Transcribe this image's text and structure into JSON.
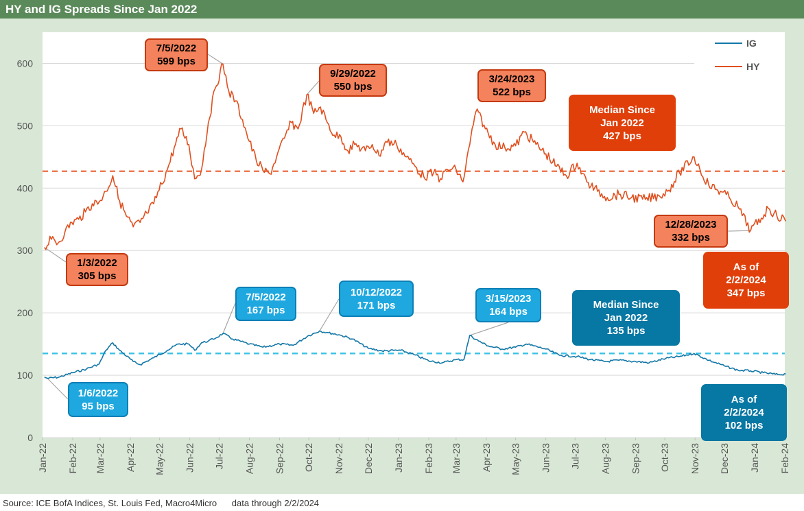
{
  "title": "HY and IG Spreads Since Jan 2022",
  "source": "Source: ICE BofA Indices, St. Louis Fed, Macro4Micro      data through 2/2/2024",
  "colors": {
    "hy": "#e0501f",
    "ig": "#1377a7",
    "hy_median": "#ee7a52",
    "ig_median": "#3cc3e6"
  },
  "callouts": {
    "hy_start": {
      "date": "1/3/2022",
      "value": "305 bps"
    },
    "hy_peak1": {
      "date": "7/5/2022",
      "value": "599 bps"
    },
    "hy_peak2": {
      "date": "9/29/2022",
      "value": "550 bps"
    },
    "hy_peak3": {
      "date": "3/24/2023",
      "value": "522 bps"
    },
    "hy_low": {
      "date": "12/28/2023",
      "value": "332 bps"
    },
    "hy_median": {
      "line1": "Median Since",
      "line2": "Jan 2022",
      "line3": "427 bps"
    },
    "hy_asof": {
      "line1": "As of",
      "line2": "2/2/2024",
      "line3": "347 bps"
    },
    "ig_start": {
      "date": "1/6/2022",
      "value": "95 bps"
    },
    "ig_peak1": {
      "date": "7/5/2022",
      "value": "167 bps"
    },
    "ig_peak2": {
      "date": "10/12/2022",
      "value": "171 bps"
    },
    "ig_peak3": {
      "date": "3/15/2023",
      "value": "164 bps"
    },
    "ig_median": {
      "line1": "Median Since",
      "line2": "Jan 2022",
      "line3": "135 bps"
    },
    "ig_asof": {
      "line1": "As of",
      "line2": "2/2/2024",
      "line3": "102 bps"
    }
  },
  "chart_data": {
    "type": "line",
    "title": "HY and IG Spreads Since Jan 2022",
    "ylim": [
      0,
      650
    ],
    "yticks": [
      0,
      100,
      200,
      300,
      400,
      500,
      600
    ],
    "grid": true,
    "legend_position": "top-right",
    "x_tick_labels": [
      "Jan-22",
      "Feb-22",
      "Mar-22",
      "Apr-22",
      "May-22",
      "Jun-22",
      "Jul-22",
      "Aug-22",
      "Sep-22",
      "Oct-22",
      "Nov-22",
      "Dec-22",
      "Jan-23",
      "Feb-23",
      "Mar-23",
      "Apr-23",
      "May-23",
      "Jun-23",
      "Jul-23",
      "Aug-23",
      "Sep-23",
      "Oct-23",
      "Nov-23",
      "Dec-23",
      "Jan-24",
      "Feb-24"
    ],
    "medians": {
      "HY": 427,
      "IG": 135
    },
    "series": [
      {
        "name": "IG",
        "color": "#1377a7",
        "points": [
          [
            "2022-01-03",
            97
          ],
          [
            "2022-01-06",
            95
          ],
          [
            "2022-01-18",
            97
          ],
          [
            "2022-02-01",
            104
          ],
          [
            "2022-02-15",
            110
          ],
          [
            "2022-02-28",
            118
          ],
          [
            "2022-03-07",
            140
          ],
          [
            "2022-03-14",
            152
          ],
          [
            "2022-03-21",
            140
          ],
          [
            "2022-04-04",
            122
          ],
          [
            "2022-04-11",
            117
          ],
          [
            "2022-04-25",
            128
          ],
          [
            "2022-05-09",
            140
          ],
          [
            "2022-05-20",
            150
          ],
          [
            "2022-05-31",
            150
          ],
          [
            "2022-06-06",
            140
          ],
          [
            "2022-06-13",
            152
          ],
          [
            "2022-06-20",
            155
          ],
          [
            "2022-06-28",
            160
          ],
          [
            "2022-07-05",
            167
          ],
          [
            "2022-07-15",
            158
          ],
          [
            "2022-08-01",
            150
          ],
          [
            "2022-08-15",
            145
          ],
          [
            "2022-09-01",
            150
          ],
          [
            "2022-09-15",
            148
          ],
          [
            "2022-09-30",
            163
          ],
          [
            "2022-10-12",
            171
          ],
          [
            "2022-10-21",
            168
          ],
          [
            "2022-11-01",
            165
          ],
          [
            "2022-11-15",
            158
          ],
          [
            "2022-12-01",
            143
          ],
          [
            "2022-12-15",
            139
          ],
          [
            "2023-01-03",
            140
          ],
          [
            "2023-01-17",
            133
          ],
          [
            "2023-02-01",
            123
          ],
          [
            "2023-02-15",
            120
          ],
          [
            "2023-03-01",
            125
          ],
          [
            "2023-03-09",
            125
          ],
          [
            "2023-03-15",
            164
          ],
          [
            "2023-03-24",
            155
          ],
          [
            "2023-04-03",
            147
          ],
          [
            "2023-04-17",
            142
          ],
          [
            "2023-05-01",
            145
          ],
          [
            "2023-05-12",
            150
          ],
          [
            "2023-06-01",
            142
          ],
          [
            "2023-06-15",
            132
          ],
          [
            "2023-07-03",
            130
          ],
          [
            "2023-07-17",
            125
          ],
          [
            "2023-08-01",
            122
          ],
          [
            "2023-08-15",
            124
          ],
          [
            "2023-09-01",
            122
          ],
          [
            "2023-09-15",
            120
          ],
          [
            "2023-10-02",
            127
          ],
          [
            "2023-10-16",
            130
          ],
          [
            "2023-10-31",
            135
          ],
          [
            "2023-11-15",
            124
          ],
          [
            "2023-12-01",
            115
          ],
          [
            "2023-12-15",
            108
          ],
          [
            "2023-12-28",
            107
          ],
          [
            "2024-01-10",
            104
          ],
          [
            "2024-01-25",
            101
          ],
          [
            "2024-02-02",
            102
          ]
        ]
      },
      {
        "name": "HY",
        "color": "#e0501f",
        "points": [
          [
            "2022-01-03",
            305
          ],
          [
            "2022-01-10",
            318
          ],
          [
            "2022-01-17",
            312
          ],
          [
            "2022-01-24",
            330
          ],
          [
            "2022-01-31",
            345
          ],
          [
            "2022-02-07",
            350
          ],
          [
            "2022-02-14",
            362
          ],
          [
            "2022-02-21",
            375
          ],
          [
            "2022-02-28",
            378
          ],
          [
            "2022-03-07",
            395
          ],
          [
            "2022-03-14",
            420
          ],
          [
            "2022-03-21",
            380
          ],
          [
            "2022-03-28",
            355
          ],
          [
            "2022-04-04",
            338
          ],
          [
            "2022-04-11",
            345
          ],
          [
            "2022-04-18",
            360
          ],
          [
            "2022-04-25",
            375
          ],
          [
            "2022-05-09",
            430
          ],
          [
            "2022-05-16",
            465
          ],
          [
            "2022-05-23",
            495
          ],
          [
            "2022-05-31",
            470
          ],
          [
            "2022-06-06",
            415
          ],
          [
            "2022-06-13",
            430
          ],
          [
            "2022-06-20",
            505
          ],
          [
            "2022-06-27",
            560
          ],
          [
            "2022-07-05",
            599
          ],
          [
            "2022-07-11",
            555
          ],
          [
            "2022-07-18",
            540
          ],
          [
            "2022-07-25",
            510
          ],
          [
            "2022-08-01",
            475
          ],
          [
            "2022-08-08",
            445
          ],
          [
            "2022-08-15",
            428
          ],
          [
            "2022-08-22",
            423
          ],
          [
            "2022-08-29",
            450
          ],
          [
            "2022-09-06",
            480
          ],
          [
            "2022-09-13",
            505
          ],
          [
            "2022-09-20",
            495
          ],
          [
            "2022-09-29",
            550
          ],
          [
            "2022-10-06",
            520
          ],
          [
            "2022-10-13",
            530
          ],
          [
            "2022-10-20",
            505
          ],
          [
            "2022-10-27",
            485
          ],
          [
            "2022-11-03",
            482
          ],
          [
            "2022-11-10",
            460
          ],
          [
            "2022-11-17",
            470
          ],
          [
            "2022-11-28",
            460
          ],
          [
            "2022-12-05",
            470
          ],
          [
            "2022-12-12",
            452
          ],
          [
            "2022-12-19",
            475
          ],
          [
            "2022-12-30",
            470
          ],
          [
            "2023-01-09",
            450
          ],
          [
            "2023-01-18",
            435
          ],
          [
            "2023-01-27",
            418
          ],
          [
            "2023-02-06",
            425
          ],
          [
            "2023-02-13",
            415
          ],
          [
            "2023-02-20",
            430
          ],
          [
            "2023-03-01",
            430
          ],
          [
            "2023-03-08",
            410
          ],
          [
            "2023-03-15",
            470
          ],
          [
            "2023-03-20",
            515
          ],
          [
            "2023-03-24",
            522
          ],
          [
            "2023-03-31",
            495
          ],
          [
            "2023-04-10",
            470
          ],
          [
            "2023-04-20",
            465
          ],
          [
            "2023-05-01",
            468
          ],
          [
            "2023-05-10",
            490
          ],
          [
            "2023-05-22",
            470
          ],
          [
            "2023-06-01",
            455
          ],
          [
            "2023-06-12",
            435
          ],
          [
            "2023-06-22",
            420
          ],
          [
            "2023-07-03",
            440
          ],
          [
            "2023-07-13",
            410
          ],
          [
            "2023-07-24",
            395
          ],
          [
            "2023-08-03",
            385
          ],
          [
            "2023-08-15",
            390
          ],
          [
            "2023-08-28",
            385
          ],
          [
            "2023-09-11",
            382
          ],
          [
            "2023-09-25",
            388
          ],
          [
            "2023-10-04",
            395
          ],
          [
            "2023-10-16",
            425
          ],
          [
            "2023-10-31",
            450
          ],
          [
            "2023-11-06",
            430
          ],
          [
            "2023-11-15",
            405
          ],
          [
            "2023-11-27",
            395
          ],
          [
            "2023-12-06",
            385
          ],
          [
            "2023-12-15",
            370
          ],
          [
            "2023-12-28",
            332
          ],
          [
            "2024-01-08",
            352
          ],
          [
            "2024-01-15",
            368
          ],
          [
            "2024-01-24",
            355
          ],
          [
            "2024-02-01",
            350
          ],
          [
            "2024-02-02",
            347
          ]
        ]
      }
    ]
  }
}
